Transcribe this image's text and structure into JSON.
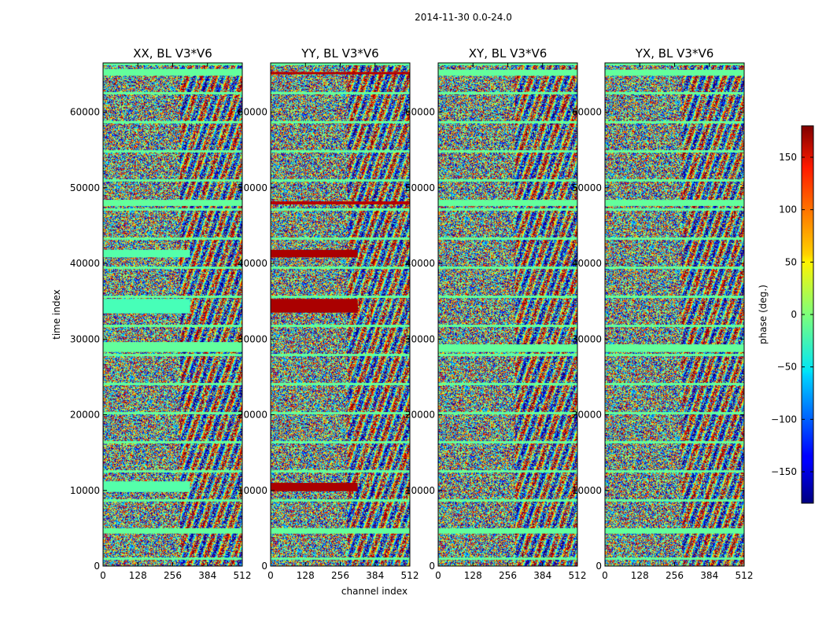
{
  "chart_data": {
    "type": "heatmap",
    "suptitle": "2014-11-30 0.0-24.0",
    "xlabel": "channel index",
    "ylabel": "time index",
    "x_range": [
      0,
      512
    ],
    "y_range": [
      0,
      66500
    ],
    "x_ticks": [
      0,
      128,
      256,
      384,
      512
    ],
    "y_ticks": [
      0,
      10000,
      20000,
      30000,
      40000,
      50000,
      60000
    ],
    "panels": [
      {
        "title": "XX, BL V3*V6",
        "bands": [
          {
            "y0": 4300,
            "y1": 5000,
            "x0": 0,
            "x1": 512,
            "phase": -10
          },
          {
            "y0": 9800,
            "y1": 11200,
            "x0": 0,
            "x1": 320,
            "phase": -15
          },
          {
            "y0": 28300,
            "y1": 29600,
            "x0": 0,
            "x1": 512,
            "phase": -10
          },
          {
            "y0": 33400,
            "y1": 35300,
            "x0": 0,
            "x1": 320,
            "phase": -20
          },
          {
            "y0": 40800,
            "y1": 41800,
            "x0": 0,
            "x1": 320,
            "phase": -15
          },
          {
            "y0": 47600,
            "y1": 48400,
            "x0": 0,
            "x1": 512,
            "phase": -10
          },
          {
            "y0": 64800,
            "y1": 65700,
            "x0": 0,
            "x1": 512,
            "phase": -10
          }
        ]
      },
      {
        "title": "YY, BL V3*V6",
        "bands": [
          {
            "y0": 4300,
            "y1": 5000,
            "x0": 0,
            "x1": 512,
            "phase": -10
          },
          {
            "y0": 9900,
            "y1": 11000,
            "x0": 0,
            "x1": 320,
            "phase": 165
          },
          {
            "y0": 33500,
            "y1": 35300,
            "x0": 0,
            "x1": 320,
            "phase": 165
          },
          {
            "y0": 40800,
            "y1": 41800,
            "x0": 0,
            "x1": 320,
            "phase": 165
          },
          {
            "y0": 47800,
            "y1": 48200,
            "x0": 0,
            "x1": 512,
            "phase": 160
          },
          {
            "y0": 65000,
            "y1": 65300,
            "x0": 0,
            "x1": 512,
            "phase": 160
          }
        ]
      },
      {
        "title": "XY, BL V3*V6",
        "bands": [
          {
            "y0": 4300,
            "y1": 5000,
            "x0": 0,
            "x1": 512,
            "phase": -10
          },
          {
            "y0": 28300,
            "y1": 29300,
            "x0": 0,
            "x1": 512,
            "phase": -10
          },
          {
            "y0": 47600,
            "y1": 48400,
            "x0": 0,
            "x1": 512,
            "phase": -10
          },
          {
            "y0": 64800,
            "y1": 65600,
            "x0": 0,
            "x1": 512,
            "phase": -10
          }
        ]
      },
      {
        "title": "YX, BL V3*V6",
        "bands": [
          {
            "y0": 4300,
            "y1": 5000,
            "x0": 0,
            "x1": 512,
            "phase": -10
          },
          {
            "y0": 28300,
            "y1": 29300,
            "x0": 0,
            "x1": 512,
            "phase": -10
          },
          {
            "y0": 47600,
            "y1": 48400,
            "x0": 0,
            "x1": 512,
            "phase": -10
          },
          {
            "y0": 64800,
            "y1": 65600,
            "x0": 0,
            "x1": 512,
            "phase": -10
          }
        ]
      }
    ],
    "colorbar": {
      "label": "phase (deg.)",
      "range": [
        -180,
        180
      ],
      "ticks": [
        -150,
        -100,
        -50,
        0,
        50,
        100,
        150
      ],
      "tick_labels": [
        "−150",
        "−100",
        "−50",
        "0",
        "50",
        "100",
        "150"
      ],
      "colormap": "jet"
    }
  }
}
